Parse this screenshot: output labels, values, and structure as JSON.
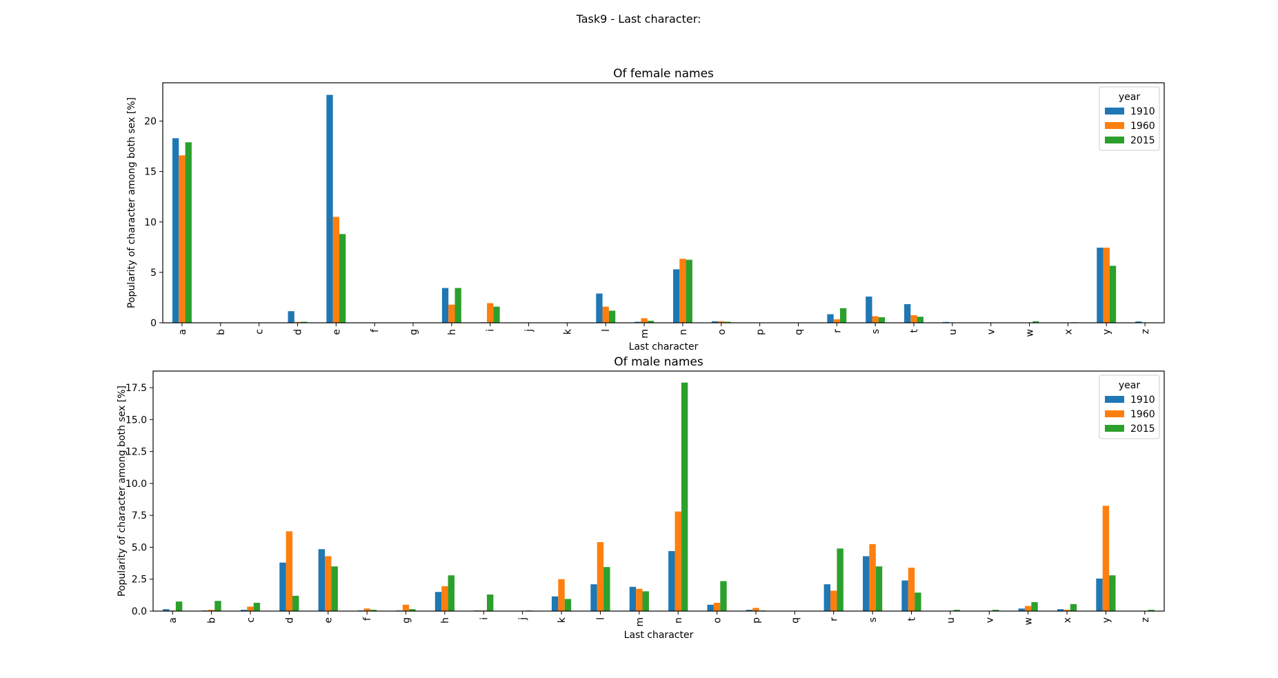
{
  "suptitle": "Task9 - Last character:",
  "colors": {
    "1910": "#1f77b4",
    "1960": "#ff7f0e",
    "2015": "#2ca02c"
  },
  "chart_data": [
    {
      "type": "bar",
      "title": "Of female names",
      "xlabel": "Last character",
      "ylabel": "Popularity of character among both sex [%]",
      "ylim": [
        0,
        23.8
      ],
      "yticks": [
        0,
        5,
        10,
        15,
        20
      ],
      "ytick_labels": [
        "0",
        "5",
        "10",
        "15",
        "20"
      ],
      "legend": {
        "title": "year",
        "placement": "upper right"
      },
      "grid": false,
      "categories": [
        "a",
        "b",
        "c",
        "d",
        "e",
        "f",
        "g",
        "h",
        "i",
        "j",
        "k",
        "l",
        "m",
        "n",
        "o",
        "p",
        "q",
        "r",
        "s",
        "t",
        "u",
        "v",
        "w",
        "x",
        "y",
        "z"
      ],
      "series": [
        {
          "name": "1910",
          "values": [
            18.3,
            0,
            0,
            1.15,
            22.6,
            0,
            0,
            3.45,
            0.05,
            0,
            0,
            2.9,
            0.1,
            5.3,
            0.15,
            0,
            0,
            0.85,
            2.6,
            1.85,
            0.08,
            0,
            0,
            0,
            7.45,
            0.13
          ]
        },
        {
          "name": "1960",
          "values": [
            16.6,
            0,
            0,
            0.08,
            10.5,
            0,
            0,
            1.8,
            1.95,
            0,
            0,
            1.6,
            0.45,
            6.35,
            0.15,
            0,
            0,
            0.35,
            0.65,
            0.75,
            0.02,
            0,
            0,
            0,
            7.45,
            0.02
          ]
        },
        {
          "name": "2015",
          "values": [
            17.9,
            0,
            0,
            0.1,
            8.8,
            0,
            0,
            3.45,
            1.6,
            0,
            0,
            1.2,
            0.2,
            6.25,
            0.1,
            0,
            0,
            1.45,
            0.55,
            0.6,
            0.02,
            0,
            0.15,
            0.05,
            5.65,
            0.02
          ]
        }
      ]
    },
    {
      "type": "bar",
      "title": "Of male names",
      "xlabel": "Last character",
      "ylabel": "Popularity of character among both sex [%]",
      "ylim": [
        0,
        18.8
      ],
      "yticks": [
        0,
        2.5,
        5,
        7.5,
        10,
        12.5,
        15,
        17.5
      ],
      "ytick_labels": [
        "0.0",
        "2.5",
        "5.0",
        "7.5",
        "10.0",
        "12.5",
        "15.0",
        "17.5"
      ],
      "legend": {
        "title": "year",
        "placement": "upper right"
      },
      "grid": false,
      "categories": [
        "a",
        "b",
        "c",
        "d",
        "e",
        "f",
        "g",
        "h",
        "i",
        "j",
        "k",
        "l",
        "m",
        "n",
        "o",
        "p",
        "q",
        "r",
        "s",
        "t",
        "u",
        "v",
        "w",
        "x",
        "y",
        "z"
      ],
      "series": [
        {
          "name": "1910",
          "values": [
            0.15,
            0.05,
            0.1,
            3.8,
            4.85,
            0.05,
            0.05,
            1.5,
            0.05,
            0,
            1.15,
            2.1,
            1.9,
            4.7,
            0.5,
            0.1,
            0,
            2.1,
            4.3,
            2.4,
            0,
            0,
            0.2,
            0.15,
            2.55,
            0
          ]
        },
        {
          "name": "1960",
          "values": [
            0.05,
            0.1,
            0.35,
            6.25,
            4.3,
            0.2,
            0.5,
            1.95,
            0.05,
            0,
            2.5,
            5.4,
            1.75,
            7.8,
            0.65,
            0.25,
            0,
            1.6,
            5.25,
            3.4,
            0,
            0,
            0.4,
            0.1,
            8.25,
            0
          ]
        },
        {
          "name": "2015",
          "values": [
            0.75,
            0.8,
            0.65,
            1.2,
            3.5,
            0.1,
            0.15,
            2.8,
            1.3,
            0.05,
            0.95,
            3.45,
            1.55,
            17.9,
            2.35,
            0.05,
            0,
            4.9,
            3.5,
            1.45,
            0.1,
            0.1,
            0.7,
            0.55,
            2.8,
            0.1
          ]
        }
      ]
    }
  ]
}
